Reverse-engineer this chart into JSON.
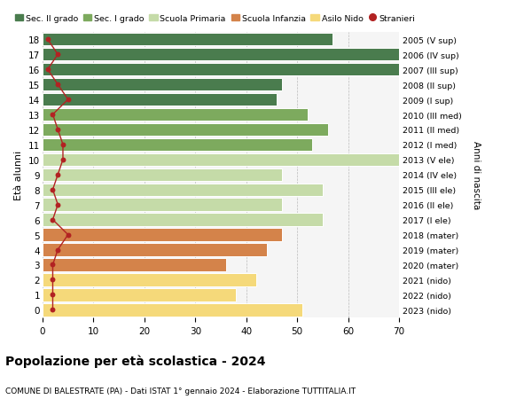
{
  "ages": [
    18,
    17,
    16,
    15,
    14,
    13,
    12,
    11,
    10,
    9,
    8,
    7,
    6,
    5,
    4,
    3,
    2,
    1,
    0
  ],
  "bar_values": [
    57,
    70,
    70,
    47,
    46,
    52,
    56,
    53,
    71,
    47,
    55,
    47,
    55,
    47,
    44,
    36,
    42,
    38,
    51
  ],
  "stranieri_values": [
    1,
    3,
    1,
    3,
    5,
    2,
    3,
    4,
    4,
    3,
    2,
    3,
    2,
    5,
    3,
    2,
    2,
    2,
    2
  ],
  "right_labels": [
    "2005 (V sup)",
    "2006 (IV sup)",
    "2007 (III sup)",
    "2008 (II sup)",
    "2009 (I sup)",
    "2010 (III med)",
    "2011 (II med)",
    "2012 (I med)",
    "2013 (V ele)",
    "2014 (IV ele)",
    "2015 (III ele)",
    "2016 (II ele)",
    "2017 (I ele)",
    "2018 (mater)",
    "2019 (mater)",
    "2020 (mater)",
    "2021 (nido)",
    "2022 (nido)",
    "2023 (nido)"
  ],
  "bar_colors": [
    "#4a7c4e",
    "#4a7c4e",
    "#4a7c4e",
    "#4a7c4e",
    "#4a7c4e",
    "#7daa5e",
    "#7daa5e",
    "#7daa5e",
    "#c5dba8",
    "#c5dba8",
    "#c5dba8",
    "#c5dba8",
    "#c5dba8",
    "#d4834a",
    "#d4834a",
    "#d4834a",
    "#f5d97a",
    "#f5d97a",
    "#f5d97a"
  ],
  "legend_labels": [
    "Sec. II grado",
    "Sec. I grado",
    "Scuola Primaria",
    "Scuola Infanzia",
    "Asilo Nido",
    "Stranieri"
  ],
  "legend_colors": [
    "#4a7c4e",
    "#7daa5e",
    "#c5dba8",
    "#d4834a",
    "#f5d97a",
    "#b22222"
  ],
  "ylabel": "Età alunni",
  "right_ylabel": "Anni di nascita",
  "title": "Popolazione per età scolastica - 2024",
  "subtitle": "COMUNE DI BALESTRATE (PA) - Dati ISTAT 1° gennaio 2024 - Elaborazione TUTTITALIA.IT",
  "xlim": [
    0,
    70
  ],
  "xticks": [
    0,
    10,
    20,
    30,
    40,
    50,
    60,
    70
  ],
  "stranieri_color": "#b22222",
  "bar_edgecolor": "white",
  "bg_color": "#ffffff",
  "plot_bg_color": "#f5f5f5"
}
